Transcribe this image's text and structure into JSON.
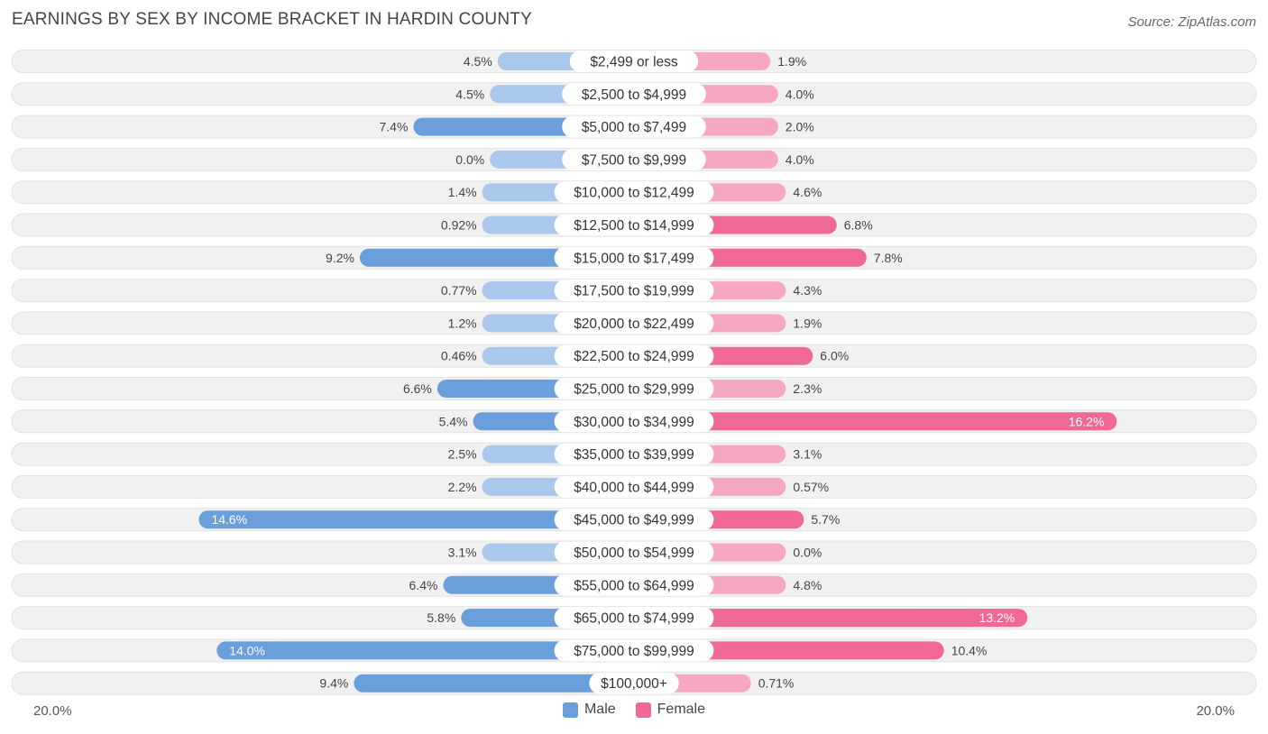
{
  "title": "EARNINGS BY SEX BY INCOME BRACKET IN HARDIN COUNTY",
  "source": "Source: ZipAtlas.com",
  "colors": {
    "male_strong": "#6a9fdc",
    "male_light": "#a9c8ec",
    "female_strong": "#f06896",
    "female_light": "#f6a8c2"
  },
  "chart_data": {
    "type": "bar",
    "orientation": "horizontal-diverging",
    "categories": [
      "$2,499 or less",
      "$2,500 to $4,999",
      "$5,000 to $7,499",
      "$7,500 to $9,999",
      "$10,000 to $12,499",
      "$12,500 to $14,999",
      "$15,000 to $17,499",
      "$17,500 to $19,999",
      "$20,000 to $22,499",
      "$22,500 to $24,999",
      "$25,000 to $29,999",
      "$30,000 to $34,999",
      "$35,000 to $39,999",
      "$40,000 to $44,999",
      "$45,000 to $49,999",
      "$50,000 to $54,999",
      "$55,000 to $64,999",
      "$65,000 to $74,999",
      "$75,000 to $99,999",
      "$100,000+"
    ],
    "series": [
      {
        "name": "Male",
        "values": [
          4.5,
          4.5,
          7.4,
          0.0,
          1.4,
          0.92,
          9.2,
          0.77,
          1.2,
          0.46,
          6.6,
          5.4,
          2.5,
          2.2,
          14.6,
          3.1,
          6.4,
          5.8,
          14.0,
          9.4
        ],
        "labels": [
          "4.5%",
          "4.5%",
          "7.4%",
          "0.0%",
          "1.4%",
          "0.92%",
          "9.2%",
          "0.77%",
          "1.2%",
          "0.46%",
          "6.6%",
          "5.4%",
          "2.5%",
          "2.2%",
          "14.6%",
          "3.1%",
          "6.4%",
          "5.8%",
          "14.0%",
          "9.4%"
        ]
      },
      {
        "name": "Female",
        "values": [
          1.9,
          4.0,
          2.0,
          4.0,
          4.6,
          6.8,
          7.8,
          4.3,
          1.9,
          6.0,
          2.3,
          16.2,
          3.1,
          0.57,
          5.7,
          0.0,
          4.8,
          13.2,
          10.4,
          0.71
        ],
        "labels": [
          "1.9%",
          "4.0%",
          "2.0%",
          "4.0%",
          "4.6%",
          "6.8%",
          "7.8%",
          "4.3%",
          "1.9%",
          "6.0%",
          "2.3%",
          "16.2%",
          "3.1%",
          "0.57%",
          "5.7%",
          "0.0%",
          "4.8%",
          "13.2%",
          "10.4%",
          "0.71%"
        ]
      }
    ],
    "xlim": [
      -20,
      20
    ],
    "axis_labels": {
      "left": "20.0%",
      "right": "20.0%"
    },
    "legend": [
      "Male",
      "Female"
    ],
    "legend_position": "bottom-center"
  }
}
